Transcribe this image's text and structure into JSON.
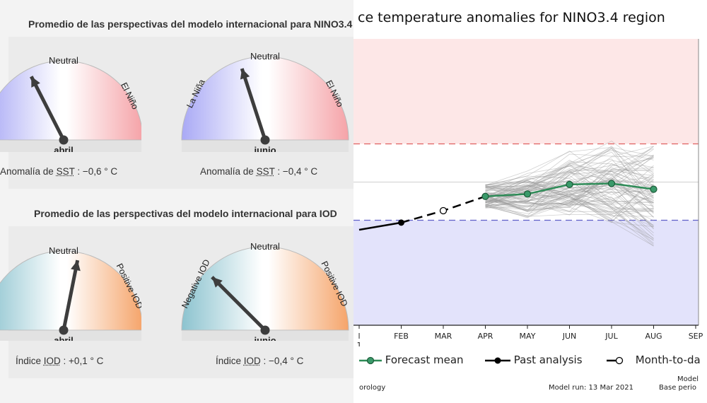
{
  "enso_panel": {
    "title": "Promedio de las perspectivas del modelo internacional para NINO3.4",
    "gauges": [
      {
        "center_label": "Neutral",
        "left_label": "",
        "right_label": "El Niño",
        "month": "abril",
        "caption_prefix": "Anomalía de ",
        "caption_abbr": "SST",
        "caption_value": " : −0,6 ° C",
        "value": -0.6
      },
      {
        "center_label": "Neutral",
        "left_label": "La Niña",
        "right_label": "El Niño",
        "month": "junio",
        "caption_prefix": "Anomalía de ",
        "caption_abbr": "SST",
        "caption_value": " : −0,4 ° C",
        "value": -0.4
      }
    ]
  },
  "iod_panel": {
    "title": "Promedio de las perspectivas del modelo internacional para IOD",
    "gauges": [
      {
        "center_label": "Neutral",
        "left_label": "",
        "right_label": "Positive IOD",
        "month": "abril",
        "caption_prefix": "Índice ",
        "caption_abbr": "IOD",
        "caption_value": " : +0,1 ° C",
        "value": 0.1
      },
      {
        "center_label": "Neutral",
        "left_label": "Negative IOD",
        "right_label": "Positive IOD",
        "month": "junio",
        "caption_prefix": "Índice ",
        "caption_abbr": "IOD",
        "caption_value": " : −0,4 ° C",
        "value": -0.4
      }
    ]
  },
  "colors": {
    "enso_warm": "#f5a3a8",
    "enso_cool": "#a9a9f5",
    "iod_warm": "#f5a46a",
    "iod_cool": "#8cc3cf",
    "needle": "#3d3d3d",
    "forecast": "#2e8b57",
    "el_nino_band": "#fde7e7",
    "la_nina_band": "#e3e3fb",
    "threshold_warm": "#e06060",
    "threshold_cool": "#6060c8"
  },
  "chart": {
    "title": "ce temperature anomalies for NINO3.4 region",
    "x_tick_labels": [
      "l",
      "FEB",
      "MAR",
      "APR",
      "MAY",
      "JUN",
      "JUL",
      "AUG",
      "SEP"
    ],
    "x_sub_label": "1",
    "legend": {
      "forecast": "Forecast mean",
      "past": "Past analysis",
      "mtd": "Month-to-da"
    },
    "footer": {
      "left": "orology",
      "model_run": "Model run: 13 Mar 2021",
      "right_top": "Model",
      "right_bottom": "Base perio"
    }
  },
  "chart_data": {
    "type": "line",
    "title": "ce temperature anomalies for NINO3.4 region",
    "xlabel": "",
    "ylabel": "",
    "months": [
      "JAN",
      "FEB",
      "MAR",
      "APR",
      "MAY",
      "JUN",
      "JUL",
      "AUG",
      "SEP"
    ],
    "ylim": [
      -3.0,
      3.0
    ],
    "thresholds": [
      0.8,
      -0.8
    ],
    "series": [
      {
        "name": "Past analysis",
        "x": [
          "JAN",
          "FEB"
        ],
        "values": [
          -1.0,
          -0.85
        ]
      },
      {
        "name": "Month-to-da",
        "x": [
          "MAR"
        ],
        "values": [
          -0.6
        ]
      },
      {
        "name": "Forecast mean",
        "x": [
          "APR",
          "MAY",
          "JUN",
          "JUL",
          "AUG"
        ],
        "values": [
          -0.3,
          -0.25,
          -0.05,
          -0.03,
          -0.15
        ]
      }
    ]
  }
}
